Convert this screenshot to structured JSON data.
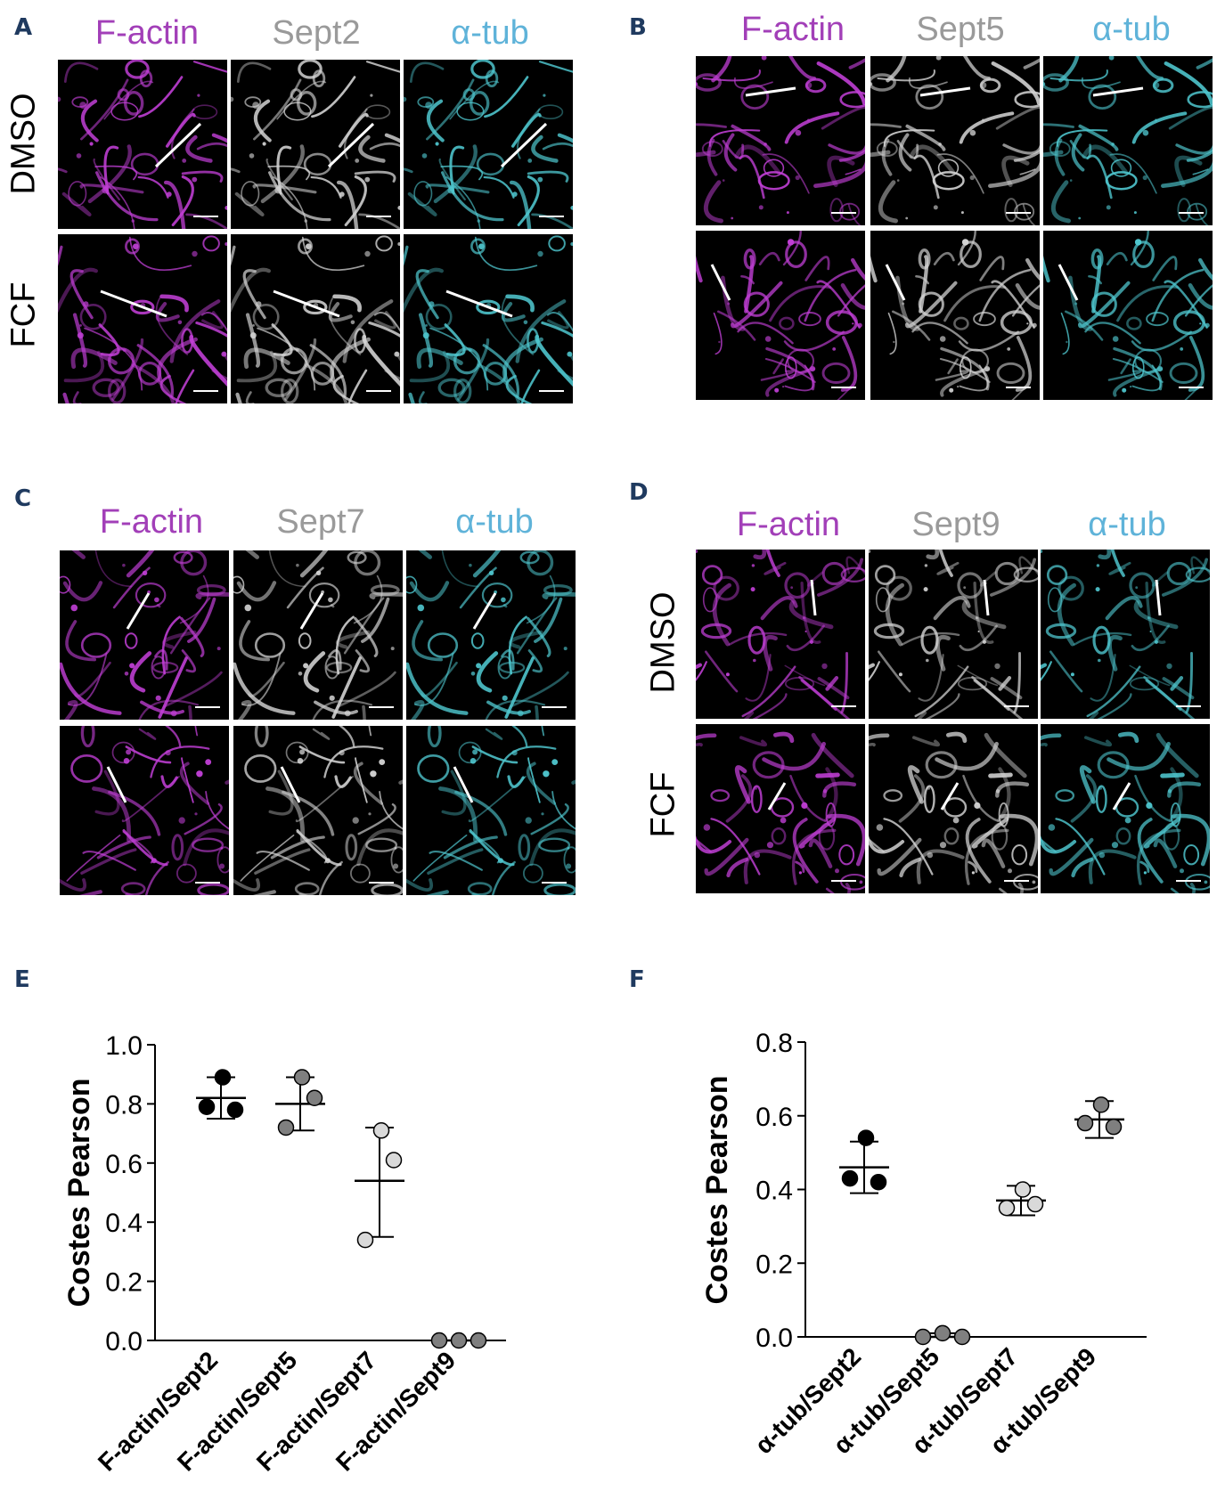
{
  "panels": {
    "A": {
      "letter": "A",
      "channels": [
        "F-actin",
        "Sept2",
        "α-tub"
      ],
      "rows": [
        "DMSO",
        "FCF"
      ]
    },
    "B": {
      "letter": "B",
      "channels": [
        "F-actin",
        "Sept5",
        "α-tub"
      ],
      "rows": []
    },
    "C": {
      "letter": "C",
      "channels": [
        "F-actin",
        "Sept7",
        "α-tub"
      ],
      "rows": []
    },
    "D": {
      "letter": "D",
      "channels": [
        "F-actin",
        "Sept9",
        "α-tub"
      ],
      "rows": [
        "DMSO",
        "FCF"
      ]
    },
    "E": {
      "letter": "E"
    },
    "F": {
      "letter": "F"
    }
  },
  "colors": {
    "actin": "#a23fb8",
    "sept": "#9a9a9a",
    "tub": "#5fb3d9",
    "letters": "#1f3a5f"
  },
  "chart_data": [
    {
      "panel": "E",
      "type": "scatter",
      "title": "",
      "xlabel": "",
      "ylabel": "Costes Pearson",
      "ylim": [
        0,
        1.0
      ],
      "yticks": [
        "0.0",
        "0.2",
        "0.4",
        "0.6",
        "0.8",
        "1.0"
      ],
      "categories": [
        "F-actin/Sept2",
        "F-actin/Sept5",
        "F-actin/Sept7",
        "F-actin/Sept9"
      ],
      "point_colors": [
        "#000000",
        "#7f7f7f",
        "#d9d9d9",
        "#7f7f7f"
      ],
      "points": [
        [
          0.89,
          0.78,
          0.79
        ],
        [
          0.89,
          0.82,
          0.72
        ],
        [
          0.71,
          0.61,
          0.34
        ],
        [
          0.0,
          0.0,
          0.0
        ]
      ],
      "mean": [
        0.82,
        0.8,
        0.54,
        0.0
      ],
      "sd_low": [
        0.75,
        0.71,
        0.35,
        0.0
      ],
      "sd_high": [
        0.89,
        0.89,
        0.72,
        0.0
      ]
    },
    {
      "panel": "F",
      "type": "scatter",
      "title": "",
      "xlabel": "",
      "ylabel": "Costes Pearson",
      "ylim": [
        0,
        0.8
      ],
      "yticks": [
        "0.0",
        "0.2",
        "0.4",
        "0.6",
        "0.8"
      ],
      "categories": [
        "α-tub/Sept2",
        "α-tub/Sept5",
        "α-tub/Sept7",
        "α-tub/Sept9"
      ],
      "point_colors": [
        "#000000",
        "#7f7f7f",
        "#d9d9d9",
        "#7f7f7f"
      ],
      "points": [
        [
          0.54,
          0.42,
          0.43
        ],
        [
          0.0,
          0.01,
          0.0
        ],
        [
          0.4,
          0.36,
          0.35
        ],
        [
          0.63,
          0.57,
          0.58
        ]
      ],
      "mean": [
        0.46,
        0.0,
        0.37,
        0.59
      ],
      "sd_low": [
        0.39,
        0.0,
        0.33,
        0.54
      ],
      "sd_high": [
        0.53,
        0.01,
        0.41,
        0.64
      ]
    }
  ]
}
